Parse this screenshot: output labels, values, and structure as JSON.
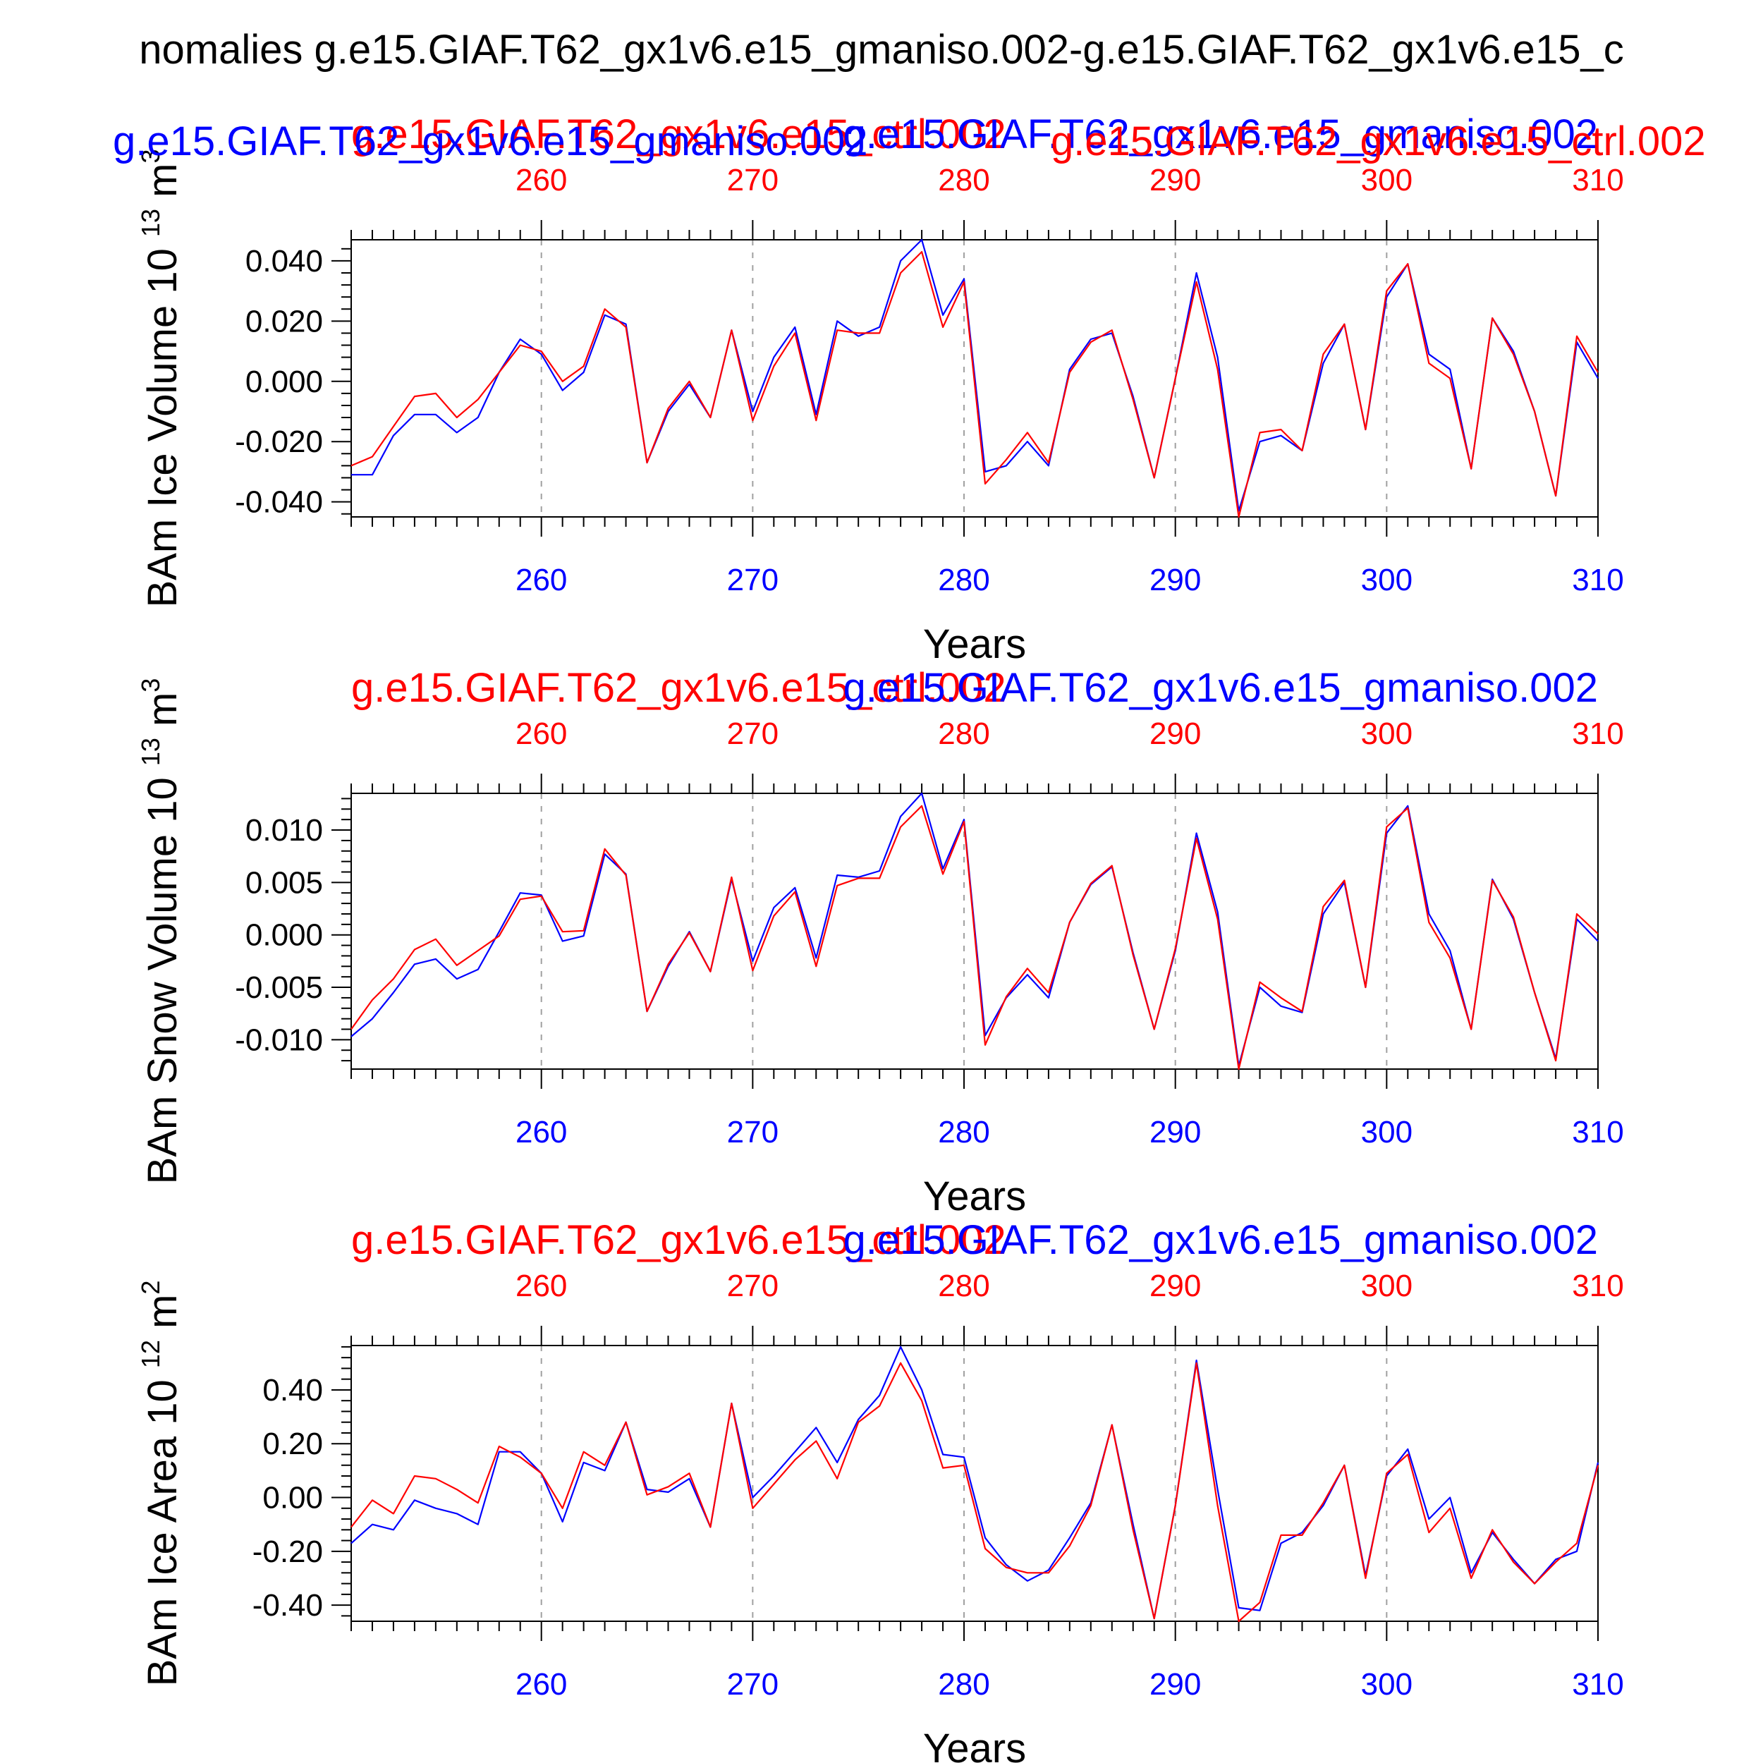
{
  "figure": {
    "title": "nomalies g.e15.GIAF.T62_gx1v6.e15_gmaniso.002-g.e15.GIAF.T62_gx1v6.e15_c"
  },
  "colors": {
    "blue": "#0000ff",
    "red": "#ff0000",
    "axis": "#000000",
    "grid": "#a0a0a0"
  },
  "chart_data": [
    {
      "type": "line",
      "title": "",
      "ylabel": "BAm Ice Volume 10",
      "ylabel_exp": "13",
      "ylabel_unit": "m",
      "ylabel_unit_exp": "3",
      "xlabel": "Years",
      "xlim": [
        251,
        310
      ],
      "ylim": [
        -0.045,
        0.047
      ],
      "xticks": [
        260,
        270,
        280,
        290,
        300,
        310
      ],
      "yticks": [
        "0.040",
        "0.020",
        "0.000",
        "-0.020",
        "-0.040"
      ],
      "ytick_values": [
        0.04,
        0.02,
        0.0,
        -0.02,
        -0.04
      ],
      "grid_x": true,
      "series_labels": {
        "red": "g.e15.GIAF.T62_gx1v6.e15_ctrl.002",
        "blue": "g.e15.GIAF.T62_gx1v6.e15_gmaniso.002",
        "red_top": "g.e15.GIAF.T62_gx1v6.e15_ctrl.002",
        "blue_top": "g.e15.GIAF.T62_gx1v6.e15_gmaniso.002"
      },
      "x": [
        251,
        252,
        253,
        254,
        255,
        256,
        257,
        258,
        259,
        260,
        261,
        262,
        263,
        264,
        265,
        266,
        267,
        268,
        269,
        270,
        271,
        272,
        273,
        274,
        275,
        276,
        277,
        278,
        279,
        280,
        281,
        282,
        283,
        284,
        285,
        286,
        287,
        288,
        289,
        290,
        291,
        292,
        293,
        294,
        295,
        296,
        297,
        298,
        299,
        300,
        301,
        302,
        303,
        304,
        305,
        306,
        307,
        308,
        309,
        310
      ],
      "series": [
        {
          "name": "g.e15.GIAF.T62_gx1v6.e15_gmaniso.002",
          "color": "blue",
          "values": [
            -0.031,
            -0.031,
            -0.018,
            -0.011,
            -0.011,
            -0.017,
            -0.012,
            0.003,
            0.014,
            0.009,
            -0.003,
            0.003,
            0.022,
            0.019,
            -0.027,
            -0.01,
            -0.001,
            -0.012,
            0.017,
            -0.01,
            0.008,
            0.018,
            -0.011,
            0.02,
            0.015,
            0.018,
            0.04,
            0.047,
            0.022,
            0.034,
            -0.03,
            -0.028,
            -0.02,
            -0.028,
            0.004,
            0.014,
            0.016,
            -0.005,
            -0.032,
            0.001,
            0.036,
            0.008,
            -0.043,
            -0.02,
            -0.018,
            -0.023,
            0.006,
            0.019,
            -0.016,
            0.028,
            0.039,
            0.009,
            0.004,
            -0.029,
            0.021,
            0.01,
            -0.01,
            -0.038,
            0.013,
            0.001
          ]
        },
        {
          "name": "g.e15.GIAF.T62_gx1v6.e15_ctrl.002",
          "color": "red",
          "values": [
            -0.028,
            -0.025,
            -0.015,
            -0.005,
            -0.004,
            -0.012,
            -0.006,
            0.003,
            0.012,
            0.01,
            0.0,
            0.005,
            0.024,
            0.018,
            -0.027,
            -0.009,
            0.0,
            -0.012,
            0.017,
            -0.013,
            0.005,
            0.016,
            -0.013,
            0.017,
            0.016,
            0.016,
            0.036,
            0.043,
            0.018,
            0.033,
            -0.034,
            -0.026,
            -0.017,
            -0.027,
            0.003,
            0.013,
            0.017,
            -0.006,
            -0.032,
            0.001,
            0.033,
            0.004,
            -0.045,
            -0.017,
            -0.016,
            -0.023,
            0.009,
            0.019,
            -0.016,
            0.03,
            0.039,
            0.006,
            0.001,
            -0.029,
            0.021,
            0.009,
            -0.01,
            -0.038,
            0.015,
            0.003
          ]
        }
      ]
    },
    {
      "type": "line",
      "title": "",
      "ylabel": "BAm Snow Volume 10",
      "ylabel_exp": "13",
      "ylabel_unit": "m",
      "ylabel_unit_exp": "3",
      "xlabel": "Years",
      "xlim": [
        251,
        310
      ],
      "ylim": [
        -0.0128,
        0.0135
      ],
      "xticks": [
        260,
        270,
        280,
        290,
        300,
        310
      ],
      "yticks": [
        "0.010",
        "0.005",
        "0.000",
        "-0.005",
        "-0.010"
      ],
      "ytick_values": [
        0.01,
        0.005,
        0.0,
        -0.005,
        -0.01
      ],
      "grid_x": true,
      "series_labels": {
        "red": "g.e15.GIAF.T62_gx1v6.e15_ctrl.002",
        "blue": "g.e15.GIAF.T62_gx1v6.e15_gmaniso.002"
      },
      "x": [
        251,
        252,
        253,
        254,
        255,
        256,
        257,
        258,
        259,
        260,
        261,
        262,
        263,
        264,
        265,
        266,
        267,
        268,
        269,
        270,
        271,
        272,
        273,
        274,
        275,
        276,
        277,
        278,
        279,
        280,
        281,
        282,
        283,
        284,
        285,
        286,
        287,
        288,
        289,
        290,
        291,
        292,
        293,
        294,
        295,
        296,
        297,
        298,
        299,
        300,
        301,
        302,
        303,
        304,
        305,
        306,
        307,
        308,
        309,
        310
      ],
      "series": [
        {
          "name": "g.e15.GIAF.T62_gx1v6.e15_gmaniso.002",
          "color": "blue",
          "values": [
            -0.0097,
            -0.008,
            -0.0055,
            -0.0028,
            -0.0023,
            -0.0042,
            -0.0033,
            0.0003,
            0.004,
            0.0038,
            -0.0006,
            -0.0001,
            0.0077,
            0.0058,
            -0.0073,
            -0.003,
            0.0003,
            -0.0035,
            0.0053,
            -0.0025,
            0.0026,
            0.0045,
            -0.0022,
            0.0057,
            0.0055,
            0.0061,
            0.0113,
            0.0135,
            0.0063,
            0.011,
            -0.0096,
            -0.006,
            -0.0038,
            -0.006,
            0.0012,
            0.0048,
            0.0065,
            -0.0017,
            -0.009,
            -0.0015,
            0.0097,
            0.0022,
            -0.0125,
            -0.005,
            -0.0068,
            -0.0074,
            0.002,
            0.005,
            -0.005,
            0.0097,
            0.0123,
            0.002,
            -0.0015,
            -0.009,
            0.0053,
            0.0015,
            -0.0055,
            -0.0118,
            0.0015,
            -0.0006
          ]
        },
        {
          "name": "g.e15.GIAF.T62_gx1v6.e15_ctrl.002",
          "color": "red",
          "values": [
            -0.009,
            -0.0062,
            -0.0042,
            -0.0014,
            -0.0004,
            -0.0029,
            -0.0015,
            -0.0001,
            0.0034,
            0.0037,
            0.0003,
            0.0004,
            0.0082,
            0.0057,
            -0.0073,
            -0.0028,
            0.0002,
            -0.0035,
            0.0055,
            -0.0034,
            0.0018,
            0.0041,
            -0.003,
            0.0047,
            0.0054,
            0.0054,
            0.0103,
            0.0123,
            0.0058,
            0.0108,
            -0.0105,
            -0.0059,
            -0.0032,
            -0.0055,
            0.0012,
            0.0049,
            0.0066,
            -0.0019,
            -0.009,
            -0.0013,
            0.0092,
            0.0015,
            -0.0128,
            -0.0045,
            -0.006,
            -0.0073,
            0.0027,
            0.0052,
            -0.005,
            0.0103,
            0.0121,
            0.0012,
            -0.0022,
            -0.009,
            0.0052,
            0.0017,
            -0.0055,
            -0.012,
            0.002,
            0.0001
          ]
        }
      ]
    },
    {
      "type": "line",
      "title": "",
      "ylabel": "BAm Ice Area 10",
      "ylabel_exp": "12",
      "ylabel_unit": "m",
      "ylabel_unit_exp": "2",
      "xlabel": "Years",
      "xlim": [
        251,
        310
      ],
      "ylim": [
        -0.46,
        0.565
      ],
      "xticks": [
        260,
        270,
        280,
        290,
        300,
        310
      ],
      "yticks": [
        "0.40",
        "0.20",
        "0.00",
        "-0.20",
        "-0.40"
      ],
      "ytick_values": [
        0.4,
        0.2,
        0.0,
        -0.2,
        -0.4
      ],
      "grid_x": true,
      "series_labels": {
        "red": "g.e15.GIAF.T62_gx1v6.e15_ctrl.002",
        "blue": "g.e15.GIAF.T62_gx1v6.e15_gmaniso.002"
      },
      "x": [
        251,
        252,
        253,
        254,
        255,
        256,
        257,
        258,
        259,
        260,
        261,
        262,
        263,
        264,
        265,
        266,
        267,
        268,
        269,
        270,
        271,
        272,
        273,
        274,
        275,
        276,
        277,
        278,
        279,
        280,
        281,
        282,
        283,
        284,
        285,
        286,
        287,
        288,
        289,
        290,
        291,
        292,
        293,
        294,
        295,
        296,
        297,
        298,
        299,
        300,
        301,
        302,
        303,
        304,
        305,
        306,
        307,
        308,
        309,
        310
      ],
      "series": [
        {
          "name": "g.e15.GIAF.T62_gx1v6.e15_gmaniso.002",
          "color": "blue",
          "values": [
            -0.17,
            -0.1,
            -0.12,
            -0.01,
            -0.04,
            -0.06,
            -0.1,
            0.17,
            0.17,
            0.09,
            -0.09,
            0.13,
            0.1,
            0.28,
            0.03,
            0.02,
            0.07,
            -0.11,
            0.35,
            0.0,
            0.08,
            0.17,
            0.26,
            0.13,
            0.29,
            0.38,
            0.56,
            0.4,
            0.16,
            0.15,
            -0.15,
            -0.25,
            -0.31,
            -0.27,
            -0.15,
            -0.02,
            0.27,
            -0.1,
            -0.45,
            -0.03,
            0.51,
            0.03,
            -0.41,
            -0.42,
            -0.17,
            -0.13,
            -0.03,
            0.12,
            -0.29,
            0.08,
            0.18,
            -0.08,
            0.0,
            -0.28,
            -0.13,
            -0.23,
            -0.32,
            -0.23,
            -0.2,
            0.13
          ]
        },
        {
          "name": "g.e15.GIAF.T62_gx1v6.e15_ctrl.002",
          "color": "red",
          "values": [
            -0.11,
            -0.01,
            -0.06,
            0.08,
            0.07,
            0.03,
            -0.02,
            0.19,
            0.15,
            0.09,
            -0.04,
            0.17,
            0.12,
            0.28,
            0.01,
            0.04,
            0.09,
            -0.11,
            0.35,
            -0.04,
            0.05,
            0.14,
            0.21,
            0.07,
            0.28,
            0.34,
            0.5,
            0.36,
            0.11,
            0.12,
            -0.19,
            -0.26,
            -0.28,
            -0.28,
            -0.18,
            -0.03,
            0.27,
            -0.12,
            -0.45,
            -0.03,
            0.5,
            -0.03,
            -0.46,
            -0.39,
            -0.14,
            -0.14,
            -0.02,
            0.12,
            -0.3,
            0.09,
            0.16,
            -0.13,
            -0.04,
            -0.3,
            -0.12,
            -0.24,
            -0.32,
            -0.24,
            -0.17,
            0.12
          ]
        }
      ]
    }
  ]
}
